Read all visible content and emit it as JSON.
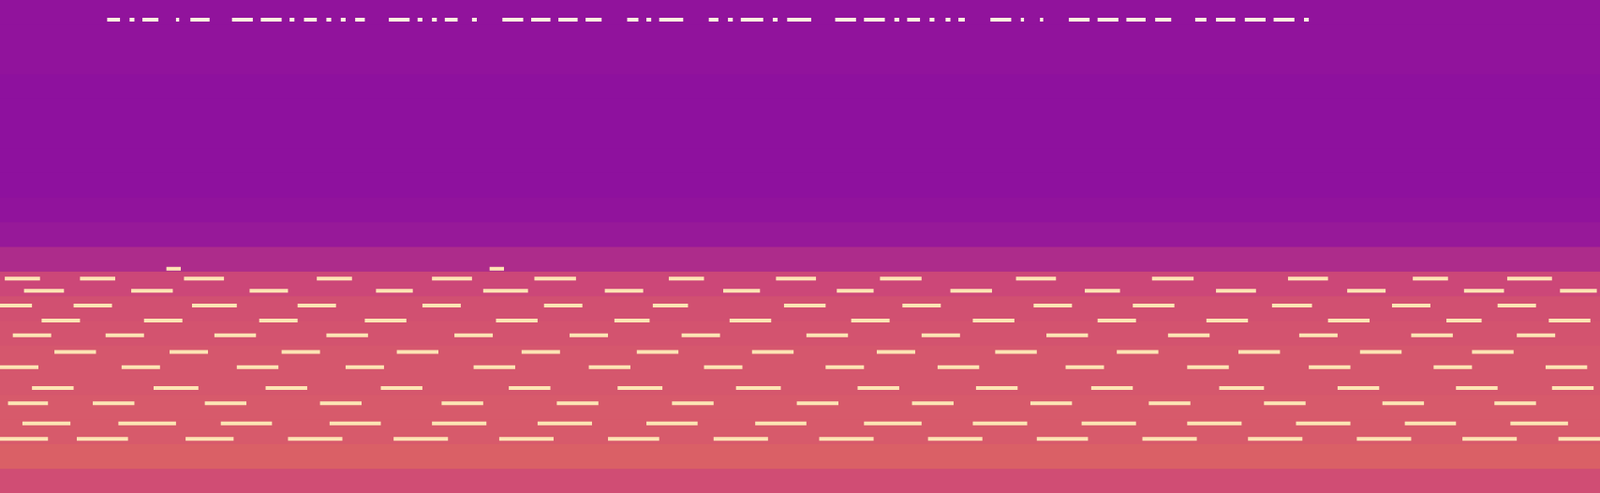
{
  "chart_data": {
    "type": "heatmap",
    "xlim": [
      0,
      100
    ],
    "ylim": [
      0,
      100
    ],
    "zlim": [
      0,
      1
    ],
    "tick_labels": false,
    "grid": false,
    "background": {
      "bins": [
        0,
        5,
        10,
        15,
        20,
        25,
        30,
        35,
        40,
        45,
        50,
        55,
        60,
        65,
        70,
        75,
        80,
        85,
        90,
        95,
        100
      ],
      "levels": [
        0.52,
        0.58,
        0.56,
        0.56,
        0.55,
        0.55,
        0.54,
        0.53,
        0.5,
        0.4,
        0.33,
        0.31,
        0.3,
        0.3,
        0.3,
        0.3,
        0.3,
        0.31,
        0.31,
        0.31
      ]
    },
    "series": [
      {
        "color": "#fff6e0",
        "freq": 96,
        "values": [
          [
            6.7,
            7.5
          ],
          [
            8.1,
            8.4
          ],
          [
            8.9,
            9.9
          ],
          [
            11.0,
            11.2
          ],
          [
            11.9,
            13.1
          ],
          [
            14.5,
            15.8
          ],
          [
            16.3,
            17.6
          ],
          [
            18.1,
            18.4
          ],
          [
            19.0,
            19.8
          ],
          [
            20.4,
            20.7
          ],
          [
            21.3,
            21.6
          ],
          [
            22.2,
            22.8
          ],
          [
            24.3,
            25.6
          ],
          [
            26.1,
            26.4
          ],
          [
            27.0,
            27.3
          ],
          [
            27.8,
            28.6
          ],
          [
            29.5,
            29.8
          ],
          [
            31.4,
            32.7
          ],
          [
            33.2,
            34.4
          ],
          [
            34.9,
            36.1
          ],
          [
            36.6,
            37.6
          ],
          [
            39.2,
            39.9
          ],
          [
            40.4,
            40.7
          ],
          [
            41.2,
            42.7
          ],
          [
            44.3,
            44.9
          ],
          [
            45.5,
            45.8
          ],
          [
            46.3,
            47.7
          ],
          [
            48.3,
            48.6
          ],
          [
            49.2,
            50.7
          ],
          [
            52.2,
            53.5
          ],
          [
            54.0,
            55.3
          ],
          [
            55.9,
            56.2
          ],
          [
            56.7,
            57.5
          ],
          [
            58.1,
            58.4
          ],
          [
            59.1,
            59.4
          ],
          [
            59.9,
            60.3
          ],
          [
            61.9,
            63.2
          ],
          [
            63.8,
            64.0
          ],
          [
            65.0,
            65.2
          ],
          [
            66.8,
            68.1
          ],
          [
            68.6,
            69.9
          ],
          [
            70.4,
            71.6
          ],
          [
            72.2,
            73.2
          ],
          [
            74.7,
            75.4
          ],
          [
            76.0,
            77.2
          ],
          [
            77.8,
            79.1
          ],
          [
            79.6,
            80.9
          ],
          [
            81.5,
            81.8
          ]
        ]
      },
      {
        "color": "#fde5b4",
        "freq": 45.5,
        "values": [
          [
            10.4,
            11.3
          ],
          [
            30.6,
            31.5
          ]
        ]
      },
      {
        "color": "#fde5b4",
        "freq": 43.5,
        "values": [
          [
            0.3,
            2.5
          ],
          [
            5,
            7.2
          ],
          [
            11.5,
            14
          ],
          [
            19.8,
            22
          ],
          [
            27,
            29.5
          ],
          [
            33.4,
            36
          ],
          [
            41.8,
            44
          ],
          [
            48.5,
            51
          ],
          [
            55,
            57.6
          ],
          [
            63.5,
            66
          ],
          [
            72,
            74.6
          ],
          [
            80.5,
            83
          ],
          [
            88.3,
            90.5
          ],
          [
            94.2,
            97
          ]
        ]
      },
      {
        "color": "#fde5b4",
        "freq": 41,
        "values": [
          [
            1.5,
            4
          ],
          [
            8.2,
            10.8
          ],
          [
            15.6,
            18
          ],
          [
            23.5,
            25.8
          ],
          [
            30.2,
            33
          ],
          [
            37.8,
            40.2
          ],
          [
            45.2,
            47.5
          ],
          [
            52.3,
            54.6
          ],
          [
            59.4,
            62
          ],
          [
            67.8,
            70
          ],
          [
            76,
            78.5
          ],
          [
            84.2,
            86.6
          ],
          [
            91.5,
            94
          ],
          [
            97.5,
            99.8
          ]
        ]
      },
      {
        "color": "#fde5b4",
        "freq": 38,
        "values": [
          [
            0,
            2
          ],
          [
            4.6,
            7
          ],
          [
            12,
            14.8
          ],
          [
            18.6,
            21
          ],
          [
            26.4,
            28.8
          ],
          [
            34,
            36.4
          ],
          [
            40.8,
            43
          ],
          [
            49,
            51.6
          ],
          [
            56.4,
            58.8
          ],
          [
            64.6,
            67
          ],
          [
            70.8,
            73.4
          ],
          [
            79.5,
            82
          ],
          [
            87,
            89.4
          ],
          [
            93.6,
            96
          ]
        ]
      },
      {
        "color": "#fde5b4",
        "freq": 35,
        "values": [
          [
            2.6,
            5
          ],
          [
            9,
            11.4
          ],
          [
            16.2,
            18.6
          ],
          [
            22.8,
            25.4
          ],
          [
            31,
            33.6
          ],
          [
            38.4,
            40.6
          ],
          [
            45.6,
            48.2
          ],
          [
            53.2,
            55.6
          ],
          [
            60.8,
            63.4
          ],
          [
            68.6,
            71
          ],
          [
            75.4,
            78
          ],
          [
            83,
            85.6
          ],
          [
            90.4,
            92.6
          ],
          [
            96.8,
            99.4
          ]
        ]
      },
      {
        "color": "#fde5b4",
        "freq": 32,
        "values": [
          [
            0.8,
            3.2
          ],
          [
            6.6,
            9
          ],
          [
            13.4,
            16
          ],
          [
            20.4,
            23
          ],
          [
            28.4,
            30.8
          ],
          [
            35.6,
            38
          ],
          [
            42.6,
            45
          ],
          [
            50.4,
            53
          ],
          [
            57.6,
            60
          ],
          [
            65.4,
            68
          ],
          [
            73,
            75.6
          ],
          [
            81.2,
            83.6
          ],
          [
            88.2,
            90.8
          ],
          [
            94.8,
            97.2
          ]
        ]
      },
      {
        "color": "#fde5b4",
        "freq": 28.6,
        "values": [
          [
            3.4,
            6
          ],
          [
            10.6,
            13
          ],
          [
            17.6,
            20
          ],
          [
            24.8,
            27.4
          ],
          [
            32.6,
            35
          ],
          [
            39.8,
            42.4
          ],
          [
            47,
            49.6
          ],
          [
            54.8,
            57.2
          ],
          [
            62.2,
            64.8
          ],
          [
            69.8,
            72.4
          ],
          [
            77.4,
            80
          ],
          [
            85,
            87.6
          ],
          [
            92,
            94.6
          ]
        ]
      },
      {
        "color": "#fde5b4",
        "freq": 25.5,
        "values": [
          [
            0,
            2.4
          ],
          [
            7.6,
            10
          ],
          [
            14.8,
            17.4
          ],
          [
            21.6,
            24
          ],
          [
            29.6,
            32.2
          ],
          [
            36.8,
            39.4
          ],
          [
            44,
            46.4
          ],
          [
            51.6,
            54
          ],
          [
            58.6,
            61.2
          ],
          [
            66.6,
            69
          ],
          [
            74.2,
            76.8
          ],
          [
            81.8,
            84.4
          ],
          [
            89.6,
            92
          ],
          [
            96.6,
            99.2
          ]
        ]
      },
      {
        "color": "#fde5b4",
        "freq": 21.3,
        "values": [
          [
            2,
            4.6
          ],
          [
            9.6,
            12.4
          ],
          [
            16.6,
            19.2
          ],
          [
            23.8,
            26.4
          ],
          [
            31.8,
            34.4
          ],
          [
            38.6,
            41.4
          ],
          [
            46,
            48.8
          ],
          [
            53.6,
            56.2
          ],
          [
            61,
            63.6
          ],
          [
            68.2,
            70.8
          ],
          [
            76.2,
            79
          ],
          [
            83.6,
            86.2
          ],
          [
            91,
            93.6
          ],
          [
            97,
            99.6
          ]
        ]
      },
      {
        "color": "#fde5b4",
        "freq": 18.2,
        "values": [
          [
            0.5,
            3
          ],
          [
            5.8,
            8.4
          ],
          [
            12.8,
            15.4
          ],
          [
            20,
            22.6
          ],
          [
            27.6,
            30.2
          ],
          [
            34.8,
            37.4
          ],
          [
            42,
            44.6
          ],
          [
            49.8,
            52.4
          ],
          [
            57,
            59.6
          ],
          [
            64.4,
            67
          ],
          [
            71.8,
            74.4
          ],
          [
            79,
            81.6
          ],
          [
            86.4,
            89
          ],
          [
            93.4,
            96
          ]
        ]
      },
      {
        "color": "#fde5b4",
        "freq": 14.1,
        "values": [
          [
            1.4,
            4.4
          ],
          [
            7.4,
            11
          ],
          [
            13.8,
            17
          ],
          [
            20.6,
            23.8
          ],
          [
            27,
            30.4
          ],
          [
            33.6,
            37
          ],
          [
            40.4,
            43.6
          ],
          [
            47.2,
            50.4
          ],
          [
            54,
            57.6
          ],
          [
            60.8,
            64.2
          ],
          [
            67.6,
            71
          ],
          [
            74.2,
            77.6
          ],
          [
            81,
            84.4
          ],
          [
            87.8,
            91
          ],
          [
            94.4,
            98
          ]
        ]
      },
      {
        "color": "#fde5b4",
        "freq": 11,
        "values": [
          [
            0,
            3
          ],
          [
            4.8,
            8
          ],
          [
            11.6,
            14.6
          ],
          [
            18,
            21.4
          ],
          [
            24.6,
            28
          ],
          [
            31.2,
            34.6
          ],
          [
            38,
            41.2
          ],
          [
            44.6,
            48
          ],
          [
            51.2,
            54.6
          ],
          [
            58,
            61.4
          ],
          [
            64.8,
            68
          ],
          [
            71.4,
            74.8
          ],
          [
            78,
            81.4
          ],
          [
            84.8,
            88.2
          ],
          [
            91.4,
            94.8
          ],
          [
            97.4,
            100
          ]
        ]
      }
    ]
  }
}
